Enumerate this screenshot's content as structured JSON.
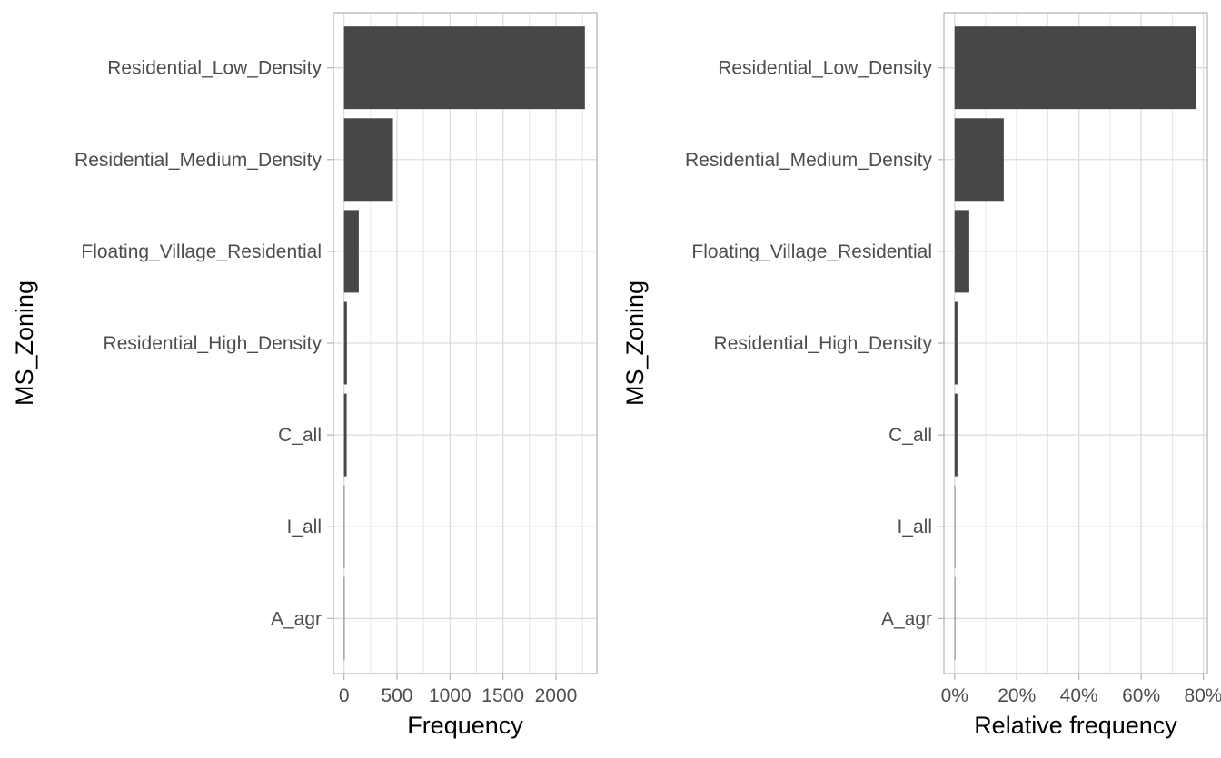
{
  "colors": {
    "bar": "#474747",
    "grid": "#dcdcdc",
    "panel_border": "#b8b8b8",
    "tick": "#b8b8b8",
    "tick_label": "#4d4d4d",
    "axis_title": "#000000"
  },
  "chart_data": [
    {
      "type": "bar",
      "orientation": "horizontal",
      "categories": [
        "Residential_Low_Density",
        "Residential_Medium_Density",
        "Floating_Village_Residential",
        "Residential_High_Density",
        "C_all",
        "I_all",
        "A_agr"
      ],
      "values": [
        2273,
        462,
        139,
        27,
        25,
        2,
        2
      ],
      "xlabel": "Frequency",
      "ylabel": "MS_Zoning",
      "x_ticks": [
        "0",
        "500",
        "1000",
        "1500",
        "2000"
      ],
      "x_tick_values": [
        0,
        500,
        1000,
        1500,
        2000
      ],
      "xlim": [
        -100,
        2386
      ],
      "grid": true
    },
    {
      "type": "bar",
      "orientation": "horizontal",
      "categories": [
        "Residential_Low_Density",
        "Residential_Medium_Density",
        "Floating_Village_Residential",
        "Residential_High_Density",
        "C_all",
        "I_all",
        "A_agr"
      ],
      "values": [
        77.6,
        15.8,
        4.7,
        0.9,
        0.9,
        0.07,
        0.07
      ],
      "xlabel": "Relative frequency",
      "ylabel": "MS_Zoning",
      "x_ticks": [
        "0%",
        "20%",
        "40%",
        "60%",
        "80%"
      ],
      "x_tick_values": [
        0,
        20,
        40,
        60,
        80
      ],
      "xlim": [
        -3.45,
        81.3
      ],
      "grid": true
    }
  ]
}
